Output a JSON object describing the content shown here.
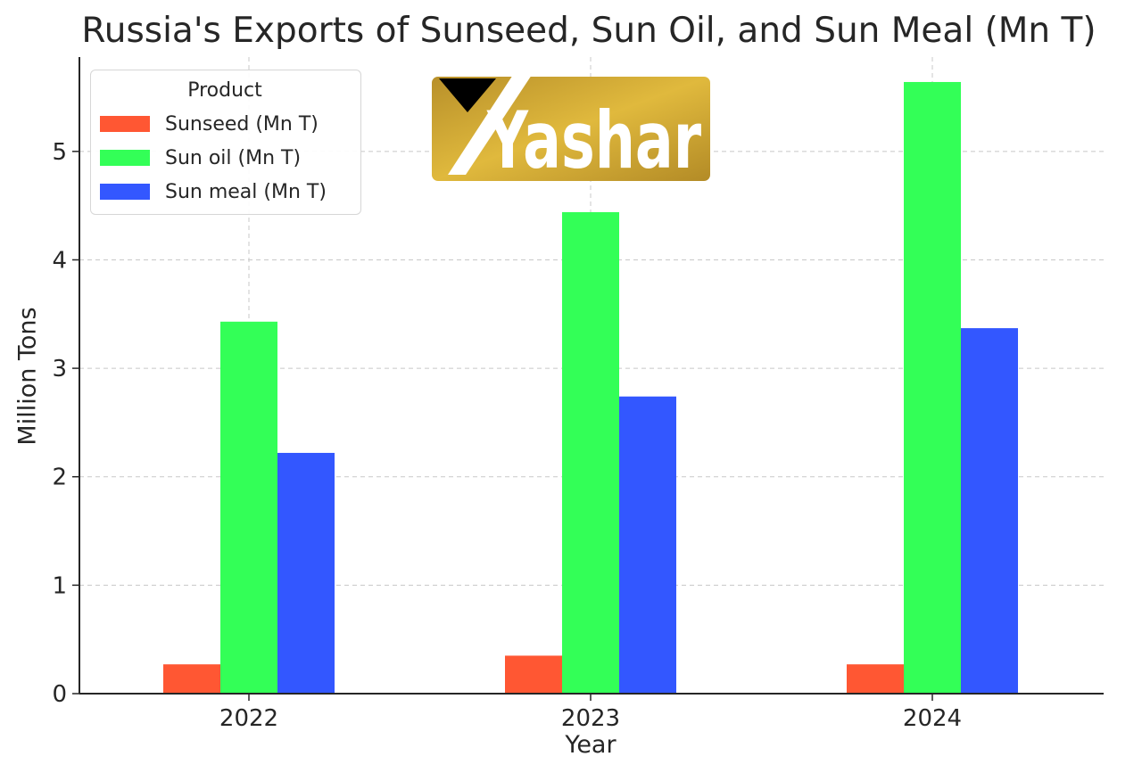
{
  "chart_data": {
    "type": "bar",
    "title": "Russia's Exports of Sunseed, Sun Oil, and Sun Meal (Mn T)",
    "xlabel": "Year",
    "ylabel": "Million Tons",
    "categories": [
      "2022",
      "2023",
      "2024"
    ],
    "series": [
      {
        "name": "Sunseed (Mn T)",
        "color": "#ff5733",
        "values": [
          0.27,
          0.35,
          0.27
        ]
      },
      {
        "name": "Sun oil (Mn T)",
        "color": "#33ff57",
        "values": [
          3.43,
          4.44,
          5.64
        ]
      },
      {
        "name": "Sun meal (Mn T)",
        "color": "#3357ff",
        "values": [
          2.22,
          2.74,
          3.37
        ]
      }
    ],
    "ylim": [
      0,
      5.87
    ],
    "yticks": [
      "0",
      "1",
      "2",
      "3",
      "4",
      "5"
    ],
    "legend": {
      "title": "Product",
      "placement": "top-left"
    },
    "grid": true
  },
  "logo": {
    "text": "Yashar",
    "colors": {
      "gold": "#c9a12a",
      "black": "#000000",
      "white": "#ffffff"
    }
  }
}
